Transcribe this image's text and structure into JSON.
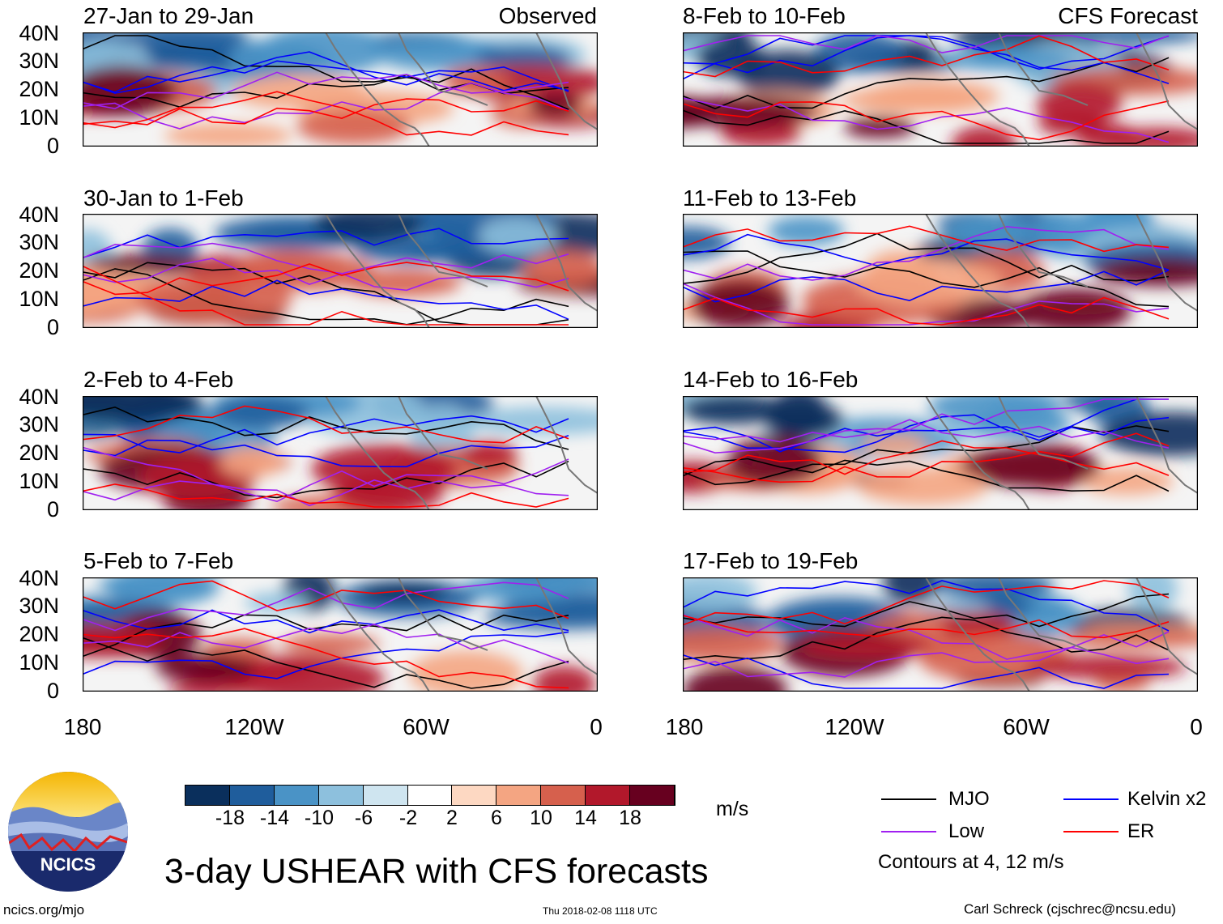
{
  "figure_title": "3-day USHEAR with CFS forecasts",
  "observed_label": "Observed",
  "forecast_label": "CFS Forecast",
  "panels_left": [
    "27-Jan to 29-Jan",
    "30-Jan to 1-Feb",
    "2-Feb to 4-Feb",
    "5-Feb to 7-Feb"
  ],
  "panels_right": [
    "8-Feb to 10-Feb",
    "11-Feb to 13-Feb",
    "14-Feb to 16-Feb",
    "17-Feb to 19-Feb"
  ],
  "lat_ticks": [
    "40N",
    "30N",
    "20N",
    "10N",
    "0"
  ],
  "lon_ticks": [
    "180",
    "120W",
    "60W",
    "0"
  ],
  "colorbar": {
    "unit": "m/s",
    "ticks": [
      "-18",
      "-14",
      "-10",
      "-6",
      "-2",
      "2",
      "6",
      "10",
      "14",
      "18"
    ],
    "colors": [
      "#0a2f5c",
      "#1f5d9c",
      "#4a93c6",
      "#8dc0dd",
      "#cfe5f0",
      "#ffffff",
      "#fdd8c2",
      "#f4a582",
      "#d6604d",
      "#b2182b",
      "#67001f"
    ]
  },
  "legend": {
    "items": [
      {
        "label": "MJO",
        "color": "#000000"
      },
      {
        "label": "Kelvin x2",
        "color": "#0000ff"
      },
      {
        "label": "Low",
        "color": "#a020f0"
      },
      {
        "label": "ER",
        "color": "#ff0000"
      }
    ],
    "contours_note": "Contours at 4, 12 m/s"
  },
  "logo_text": "NCICS",
  "site": "ncics.org/mjo",
  "timestamp": "Thu 2018-02-08 1118 UTC",
  "author": "Carl Schreck (cjschrec@ncsu.edu)"
}
